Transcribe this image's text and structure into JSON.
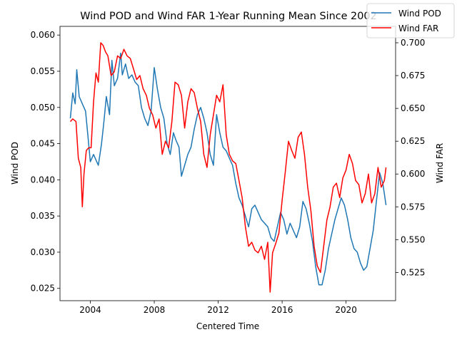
{
  "chart_data": {
    "type": "line",
    "title": "Wind POD and Wind FAR 1-Year Running Mean Since 2002",
    "xlabel": "Centered Time",
    "ylabel_left": "Wind POD",
    "ylabel_right": "Wind FAR",
    "x_ticks": [
      2004,
      2008,
      2012,
      2016,
      2020
    ],
    "xlim": [
      2002.1,
      2023.1
    ],
    "ylim_left": [
      0.0233,
      0.0612
    ],
    "ylim_right": [
      0.5035,
      0.7125
    ],
    "y_ticks_left": [
      "0.025",
      "0.030",
      "0.035",
      "0.040",
      "0.045",
      "0.050",
      "0.055",
      "0.060"
    ],
    "y_ticks_right": [
      "0.525",
      "0.550",
      "0.575",
      "0.600",
      "0.625",
      "0.650",
      "0.675",
      "0.700"
    ],
    "grid": false,
    "legend": {
      "placement": "top-right",
      "entries": [
        "Wind POD",
        "Wind FAR"
      ]
    },
    "colors": {
      "Wind POD": "#1f77b4",
      "Wind FAR": "#ff0000"
    },
    "series": [
      {
        "name": "Wind POD",
        "axis": "left",
        "x": [
          2002.75,
          2002.9,
          2003.05,
          2003.15,
          2003.3,
          2003.5,
          2003.7,
          2003.85,
          2004.0,
          2004.2,
          2004.5,
          2004.7,
          2004.85,
          2005.0,
          2005.2,
          2005.35,
          2005.5,
          2005.7,
          2005.9,
          2006.0,
          2006.2,
          2006.4,
          2006.6,
          2006.8,
          2007.0,
          2007.2,
          2007.4,
          2007.6,
          2007.8,
          2008.0,
          2008.2,
          2008.4,
          2008.6,
          2008.8,
          2009.0,
          2009.2,
          2009.35,
          2009.55,
          2009.7,
          2009.9,
          2010.1,
          2010.3,
          2010.5,
          2010.7,
          2010.9,
          2011.1,
          2011.3,
          2011.5,
          2011.7,
          2011.9,
          2012.1,
          2012.3,
          2012.5,
          2012.7,
          2012.9,
          2013.1,
          2013.3,
          2013.5,
          2013.7,
          2013.9,
          2014.1,
          2014.3,
          2014.5,
          2014.7,
          2014.9,
          2015.1,
          2015.3,
          2015.5,
          2015.7,
          2015.9,
          2016.1,
          2016.3,
          2016.5,
          2016.7,
          2016.9,
          2017.1,
          2017.3,
          2017.5,
          2017.7,
          2017.9,
          2018.1,
          2018.3,
          2018.5,
          2018.7,
          2018.9,
          2019.1,
          2019.3,
          2019.5,
          2019.7,
          2019.9,
          2020.1,
          2020.3,
          2020.5,
          2020.7,
          2020.9,
          2021.1,
          2021.3,
          2021.5,
          2021.7,
          2021.9,
          2022.1,
          2022.3,
          2022.5
        ],
        "values": [
          0.0485,
          0.052,
          0.0505,
          0.0552,
          0.0515,
          0.0505,
          0.0495,
          0.046,
          0.0425,
          0.0435,
          0.042,
          0.045,
          0.048,
          0.0515,
          0.049,
          0.0565,
          0.053,
          0.054,
          0.0575,
          0.0545,
          0.056,
          0.054,
          0.0545,
          0.0535,
          0.053,
          0.05,
          0.0485,
          0.0475,
          0.0495,
          0.0555,
          0.0525,
          0.05,
          0.0485,
          0.045,
          0.0435,
          0.0465,
          0.0455,
          0.0445,
          0.0405,
          0.042,
          0.0435,
          0.0445,
          0.047,
          0.049,
          0.05,
          0.0485,
          0.0465,
          0.0435,
          0.042,
          0.049,
          0.0465,
          0.0445,
          0.044,
          0.043,
          0.042,
          0.0395,
          0.0375,
          0.0365,
          0.035,
          0.0335,
          0.036,
          0.0365,
          0.0355,
          0.0345,
          0.034,
          0.0335,
          0.032,
          0.0315,
          0.0335,
          0.0355,
          0.0345,
          0.0325,
          0.034,
          0.033,
          0.032,
          0.0335,
          0.037,
          0.036,
          0.034,
          0.0315,
          0.028,
          0.0255,
          0.0255,
          0.0275,
          0.0305,
          0.0325,
          0.0345,
          0.036,
          0.0375,
          0.0365,
          0.0345,
          0.032,
          0.0305,
          0.03,
          0.0285,
          0.0275,
          0.028,
          0.0305,
          0.033,
          0.037,
          0.041,
          0.0395,
          0.0365
        ]
      },
      {
        "name": "Wind FAR",
        "axis": "right",
        "x": [
          2002.75,
          2002.9,
          2003.1,
          2003.25,
          2003.4,
          2003.5,
          2003.6,
          2003.75,
          2003.9,
          2004.05,
          2004.2,
          2004.35,
          2004.5,
          2004.65,
          2004.8,
          2004.95,
          2005.1,
          2005.3,
          2005.5,
          2005.7,
          2005.9,
          2006.1,
          2006.3,
          2006.5,
          2006.7,
          2006.9,
          2007.1,
          2007.3,
          2007.5,
          2007.7,
          2007.9,
          2008.1,
          2008.3,
          2008.5,
          2008.7,
          2008.9,
          2009.1,
          2009.3,
          2009.5,
          2009.7,
          2009.9,
          2010.1,
          2010.3,
          2010.5,
          2010.7,
          2010.9,
          2011.1,
          2011.3,
          2011.5,
          2011.7,
          2011.9,
          2012.1,
          2012.3,
          2012.5,
          2012.7,
          2012.9,
          2013.1,
          2013.3,
          2013.5,
          2013.7,
          2013.9,
          2014.1,
          2014.3,
          2014.5,
          2014.7,
          2014.9,
          2015.1,
          2015.25,
          2015.4,
          2015.6,
          2015.8,
          2016.0,
          2016.2,
          2016.4,
          2016.6,
          2016.8,
          2017.0,
          2017.2,
          2017.4,
          2017.6,
          2017.8,
          2018.0,
          2018.2,
          2018.4,
          2018.6,
          2018.8,
          2019.0,
          2019.2,
          2019.4,
          2019.6,
          2019.8,
          2020.0,
          2020.2,
          2020.4,
          2020.6,
          2020.8,
          2021.0,
          2021.2,
          2021.4,
          2021.6,
          2021.8,
          2022.0,
          2022.2,
          2022.4,
          2022.5
        ],
        "values": [
          0.64,
          0.642,
          0.64,
          0.612,
          0.605,
          0.575,
          0.6,
          0.618,
          0.62,
          0.62,
          0.655,
          0.677,
          0.67,
          0.7,
          0.698,
          0.693,
          0.69,
          0.675,
          0.678,
          0.69,
          0.688,
          0.695,
          0.69,
          0.688,
          0.68,
          0.672,
          0.675,
          0.665,
          0.66,
          0.65,
          0.645,
          0.635,
          0.642,
          0.615,
          0.625,
          0.62,
          0.64,
          0.67,
          0.668,
          0.66,
          0.635,
          0.655,
          0.665,
          0.662,
          0.65,
          0.64,
          0.615,
          0.605,
          0.63,
          0.645,
          0.66,
          0.655,
          0.668,
          0.63,
          0.615,
          0.61,
          0.608,
          0.595,
          0.582,
          0.56,
          0.545,
          0.548,
          0.542,
          0.54,
          0.545,
          0.535,
          0.548,
          0.51,
          0.54,
          0.547,
          0.555,
          0.58,
          0.602,
          0.625,
          0.618,
          0.612,
          0.628,
          0.632,
          0.615,
          0.59,
          0.572,
          0.545,
          0.53,
          0.525,
          0.545,
          0.565,
          0.575,
          0.59,
          0.593,
          0.582,
          0.597,
          0.603,
          0.615,
          0.608,
          0.595,
          0.592,
          0.578,
          0.585,
          0.6,
          0.578,
          0.585,
          0.605,
          0.59,
          0.595,
          0.605
        ]
      }
    ]
  }
}
